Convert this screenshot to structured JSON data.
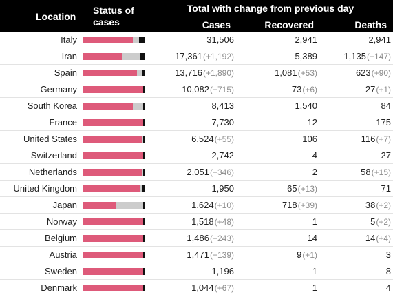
{
  "header": {
    "location": "Location",
    "status": "Status of cases",
    "group": "Total with change from previous day",
    "cases": "Cases",
    "recovered": "Recovered",
    "deaths": "Deaths"
  },
  "colors": {
    "header_bg": "#000000",
    "active_cases_bar": "#de5a7a",
    "recovered_bar": "#cccccc",
    "deaths_bar": "#111111",
    "change_text": "#8c8c8c"
  },
  "rows": [
    {
      "location": "Italy",
      "cases": "31,506",
      "cases_change": "",
      "recovered": "2,941",
      "recovered_change": "",
      "deaths": "2,941",
      "deaths_change": "",
      "bar": {
        "cases": 0.813,
        "recovered": 0.093,
        "deaths": 0.093
      }
    },
    {
      "location": "Iran",
      "cases": "17,361",
      "cases_change": "(+1,192)",
      "recovered": "5,389",
      "recovered_change": "",
      "deaths": "1,135",
      "deaths_change": "(+147)",
      "bar": {
        "cases": 0.625,
        "recovered": 0.31,
        "deaths": 0.065
      }
    },
    {
      "location": "Spain",
      "cases": "13,716",
      "cases_change": "(+1,890)",
      "recovered": "1,081",
      "recovered_change": "(+53)",
      "deaths": "623",
      "deaths_change": "(+90)",
      "bar": {
        "cases": 0.876,
        "recovered": 0.079,
        "deaths": 0.045
      }
    },
    {
      "location": "Germany",
      "cases": "10,082",
      "cases_change": "(+715)",
      "recovered": "73",
      "recovered_change": "(+6)",
      "deaths": "27",
      "deaths_change": "(+1)",
      "bar": {
        "cases": 0.99,
        "recovered": 0.007,
        "deaths": 0.003
      }
    },
    {
      "location": "South Korea",
      "cases": "8,413",
      "cases_change": "",
      "recovered": "1,540",
      "recovered_change": "",
      "deaths": "84",
      "deaths_change": "",
      "bar": {
        "cases": 0.807,
        "recovered": 0.183,
        "deaths": 0.01
      }
    },
    {
      "location": "France",
      "cases": "7,730",
      "cases_change": "",
      "recovered": "12",
      "recovered_change": "",
      "deaths": "175",
      "deaths_change": "",
      "bar": {
        "cases": 0.976,
        "recovered": 0.002,
        "deaths": 0.023
      }
    },
    {
      "location": "United States",
      "cases": "6,524",
      "cases_change": "(+55)",
      "recovered": "106",
      "recovered_change": "",
      "deaths": "116",
      "deaths_change": "(+7)",
      "bar": {
        "cases": 0.966,
        "recovered": 0.016,
        "deaths": 0.018
      }
    },
    {
      "location": "Switzerland",
      "cases": "2,742",
      "cases_change": "",
      "recovered": "4",
      "recovered_change": "",
      "deaths": "27",
      "deaths_change": "",
      "bar": {
        "cases": 0.989,
        "recovered": 0.001,
        "deaths": 0.01
      }
    },
    {
      "location": "Netherlands",
      "cases": "2,051",
      "cases_change": "(+346)",
      "recovered": "2",
      "recovered_change": "",
      "deaths": "58",
      "deaths_change": "(+15)",
      "bar": {
        "cases": 0.971,
        "recovered": 0.001,
        "deaths": 0.028
      }
    },
    {
      "location": "United Kingdom",
      "cases": "1,950",
      "cases_change": "",
      "recovered": "65",
      "recovered_change": "(+13)",
      "deaths": "71",
      "deaths_change": "",
      "bar": {
        "cases": 0.93,
        "recovered": 0.033,
        "deaths": 0.036
      }
    },
    {
      "location": "Japan",
      "cases": "1,624",
      "cases_change": "(+10)",
      "recovered": "718",
      "recovered_change": "(+39)",
      "deaths": "38",
      "deaths_change": "(+2)",
      "bar": {
        "cases": 0.535,
        "recovered": 0.442,
        "deaths": 0.023
      }
    },
    {
      "location": "Norway",
      "cases": "1,518",
      "cases_change": "(+48)",
      "recovered": "1",
      "recovered_change": "",
      "deaths": "5",
      "deaths_change": "(+2)",
      "bar": {
        "cases": 0.996,
        "recovered": 0.001,
        "deaths": 0.003
      }
    },
    {
      "location": "Belgium",
      "cases": "1,486",
      "cases_change": "(+243)",
      "recovered": "14",
      "recovered_change": "",
      "deaths": "14",
      "deaths_change": "(+4)",
      "bar": {
        "cases": 0.981,
        "recovered": 0.009,
        "deaths": 0.009
      }
    },
    {
      "location": "Austria",
      "cases": "1,471",
      "cases_change": "(+139)",
      "recovered": "9",
      "recovered_change": "(+1)",
      "deaths": "3",
      "deaths_change": "",
      "bar": {
        "cases": 0.992,
        "recovered": 0.006,
        "deaths": 0.002
      }
    },
    {
      "location": "Sweden",
      "cases": "1,196",
      "cases_change": "",
      "recovered": "1",
      "recovered_change": "",
      "deaths": "8",
      "deaths_change": "",
      "bar": {
        "cases": 0.993,
        "recovered": 0.001,
        "deaths": 0.007
      }
    },
    {
      "location": "Denmark",
      "cases": "1,044",
      "cases_change": "(+67)",
      "recovered": "1",
      "recovered_change": "",
      "deaths": "4",
      "deaths_change": "",
      "bar": {
        "cases": 0.995,
        "recovered": 0.001,
        "deaths": 0.004
      }
    }
  ]
}
